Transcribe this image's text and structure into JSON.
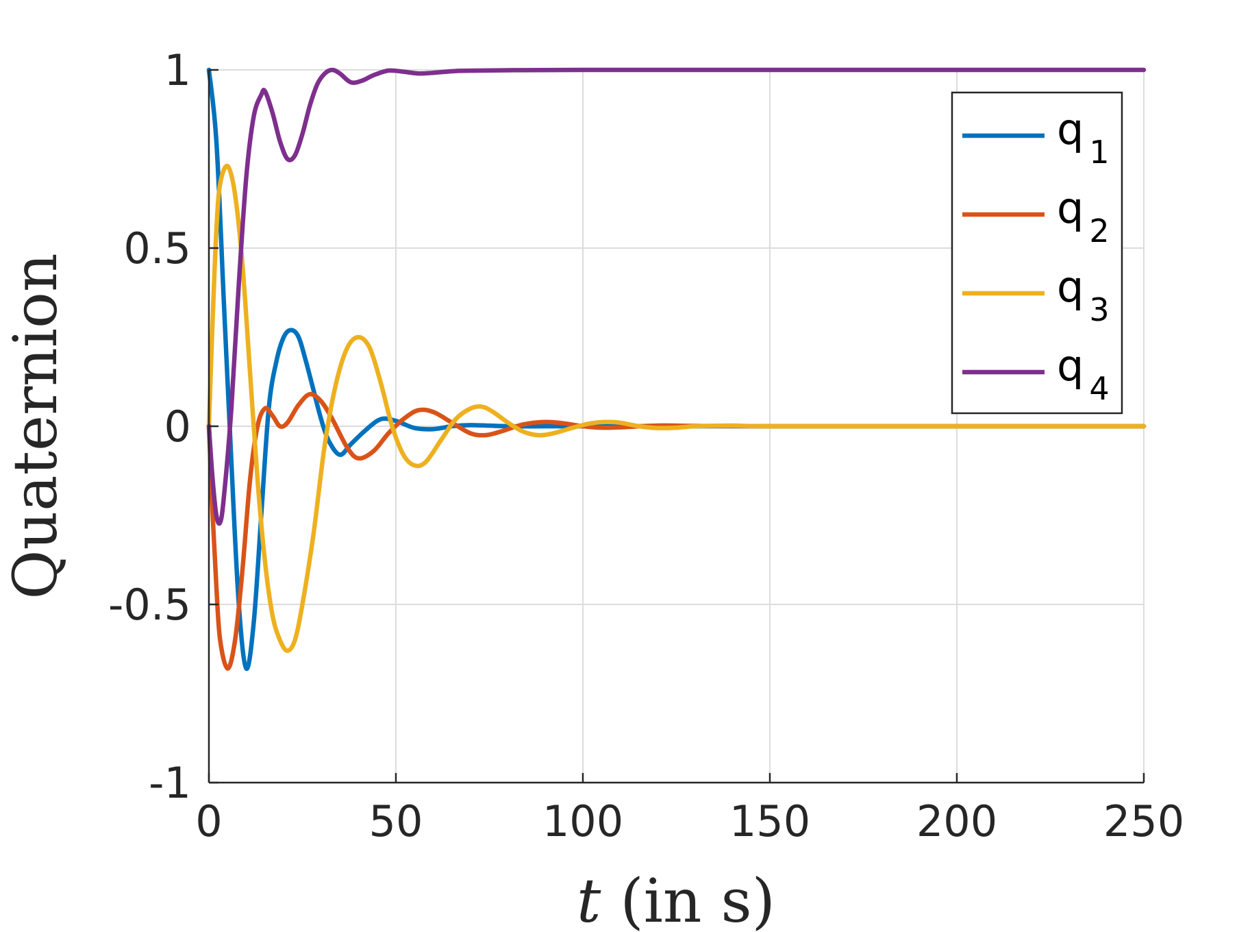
{
  "chart_data": {
    "type": "line",
    "title": "",
    "xlabel": {
      "var": "t",
      "rest": " (in s)"
    },
    "ylabel": "Quaternion",
    "xlim": [
      0,
      250
    ],
    "ylim": [
      -1,
      1
    ],
    "xticks": [
      0,
      50,
      100,
      150,
      200,
      250
    ],
    "yticks": [
      -1,
      -0.5,
      0,
      0.5,
      1
    ],
    "xtick_labels": [
      "0",
      "50",
      "100",
      "150",
      "200",
      "250"
    ],
    "ytick_labels": [
      "-1",
      "-0.5",
      "0",
      "0.5",
      "1"
    ],
    "grid": true,
    "legend_position": "top-right",
    "series": [
      {
        "name": "q",
        "sub": "1",
        "color": "#0072BD",
        "points": [
          [
            0,
            1.0
          ],
          [
            2,
            0.8
          ],
          [
            4,
            0.35
          ],
          [
            6,
            -0.1
          ],
          [
            8,
            -0.5
          ],
          [
            10,
            -0.68
          ],
          [
            12,
            -0.55
          ],
          [
            14,
            -0.25
          ],
          [
            16,
            0.05
          ],
          [
            18,
            0.18
          ],
          [
            20,
            0.25
          ],
          [
            22,
            0.27
          ],
          [
            24,
            0.25
          ],
          [
            26,
            0.18
          ],
          [
            28,
            0.1
          ],
          [
            30,
            0.02
          ],
          [
            32,
            -0.04
          ],
          [
            35,
            -0.08
          ],
          [
            38,
            -0.05
          ],
          [
            42,
            -0.01
          ],
          [
            46,
            0.02
          ],
          [
            50,
            0.015
          ],
          [
            55,
            -0.005
          ],
          [
            60,
            -0.008
          ],
          [
            65,
            0.0
          ],
          [
            70,
            0.003
          ],
          [
            80,
            0.0
          ],
          [
            90,
            0.0
          ],
          [
            100,
            0.0
          ],
          [
            150,
            0.0
          ],
          [
            200,
            0.0
          ],
          [
            250,
            0.0
          ]
        ]
      },
      {
        "name": "q",
        "sub": "2",
        "color": "#D95319",
        "points": [
          [
            0,
            0.0
          ],
          [
            1,
            -0.25
          ],
          [
            2,
            -0.45
          ],
          [
            3,
            -0.6
          ],
          [
            5,
            -0.68
          ],
          [
            7,
            -0.6
          ],
          [
            9,
            -0.4
          ],
          [
            11,
            -0.15
          ],
          [
            13,
            0.0
          ],
          [
            15,
            0.05
          ],
          [
            17,
            0.03
          ],
          [
            19,
            0.0
          ],
          [
            21,
            0.01
          ],
          [
            24,
            0.06
          ],
          [
            27,
            0.09
          ],
          [
            30,
            0.07
          ],
          [
            33,
            0.02
          ],
          [
            37,
            -0.06
          ],
          [
            40,
            -0.09
          ],
          [
            44,
            -0.07
          ],
          [
            48,
            -0.02
          ],
          [
            52,
            0.02
          ],
          [
            56,
            0.045
          ],
          [
            60,
            0.04
          ],
          [
            65,
            0.01
          ],
          [
            70,
            -0.02
          ],
          [
            74,
            -0.025
          ],
          [
            78,
            -0.015
          ],
          [
            84,
            0.005
          ],
          [
            90,
            0.012
          ],
          [
            95,
            0.008
          ],
          [
            100,
            0.0
          ],
          [
            105,
            -0.004
          ],
          [
            110,
            -0.003
          ],
          [
            120,
            0.002
          ],
          [
            130,
            0.001
          ],
          [
            150,
            0.0
          ],
          [
            200,
            0.0
          ],
          [
            250,
            0.0
          ]
        ]
      },
      {
        "name": "q",
        "sub": "3",
        "color": "#EDB120",
        "points": [
          [
            0,
            0.0
          ],
          [
            1,
            0.3
          ],
          [
            2,
            0.55
          ],
          [
            3,
            0.68
          ],
          [
            5,
            0.73
          ],
          [
            7,
            0.65
          ],
          [
            9,
            0.45
          ],
          [
            11,
            0.15
          ],
          [
            13,
            -0.15
          ],
          [
            15,
            -0.38
          ],
          [
            17,
            -0.53
          ],
          [
            19,
            -0.6
          ],
          [
            21,
            -0.63
          ],
          [
            23,
            -0.6
          ],
          [
            25,
            -0.5
          ],
          [
            28,
            -0.3
          ],
          [
            31,
            -0.05
          ],
          [
            34,
            0.12
          ],
          [
            37,
            0.22
          ],
          [
            40,
            0.25
          ],
          [
            43,
            0.22
          ],
          [
            46,
            0.12
          ],
          [
            49,
            0.0
          ],
          [
            52,
            -0.08
          ],
          [
            55,
            -0.11
          ],
          [
            58,
            -0.1
          ],
          [
            62,
            -0.04
          ],
          [
            66,
            0.02
          ],
          [
            70,
            0.05
          ],
          [
            73,
            0.055
          ],
          [
            76,
            0.04
          ],
          [
            80,
            0.01
          ],
          [
            84,
            -0.015
          ],
          [
            88,
            -0.025
          ],
          [
            92,
            -0.02
          ],
          [
            97,
            -0.005
          ],
          [
            102,
            0.008
          ],
          [
            106,
            0.012
          ],
          [
            110,
            0.01
          ],
          [
            115,
            0.0
          ],
          [
            120,
            -0.005
          ],
          [
            125,
            -0.004
          ],
          [
            130,
            0.0
          ],
          [
            140,
            0.002
          ],
          [
            150,
            0.0
          ],
          [
            200,
            0.0
          ],
          [
            250,
            0.0
          ]
        ]
      },
      {
        "name": "q",
        "sub": "4",
        "color": "#7E2F8E",
        "points": [
          [
            0,
            0.0
          ],
          [
            1,
            -0.15
          ],
          [
            2,
            -0.25
          ],
          [
            3,
            -0.27
          ],
          [
            4,
            -0.2
          ],
          [
            6,
            0.05
          ],
          [
            8,
            0.4
          ],
          [
            10,
            0.7
          ],
          [
            12,
            0.87
          ],
          [
            14,
            0.93
          ],
          [
            15,
            0.94
          ],
          [
            17,
            0.88
          ],
          [
            19,
            0.8
          ],
          [
            21,
            0.75
          ],
          [
            23,
            0.76
          ],
          [
            25,
            0.82
          ],
          [
            27,
            0.9
          ],
          [
            29,
            0.96
          ],
          [
            31,
            0.99
          ],
          [
            33,
            1.0
          ],
          [
            35,
            0.99
          ],
          [
            38,
            0.965
          ],
          [
            41,
            0.97
          ],
          [
            44,
            0.985
          ],
          [
            48,
            0.998
          ],
          [
            52,
            0.995
          ],
          [
            56,
            0.99
          ],
          [
            60,
            0.992
          ],
          [
            66,
            0.997
          ],
          [
            72,
            0.998
          ],
          [
            80,
            0.999
          ],
          [
            100,
            1.0
          ],
          [
            150,
            1.0
          ],
          [
            200,
            1.0
          ],
          [
            250,
            1.0
          ]
        ]
      }
    ]
  }
}
